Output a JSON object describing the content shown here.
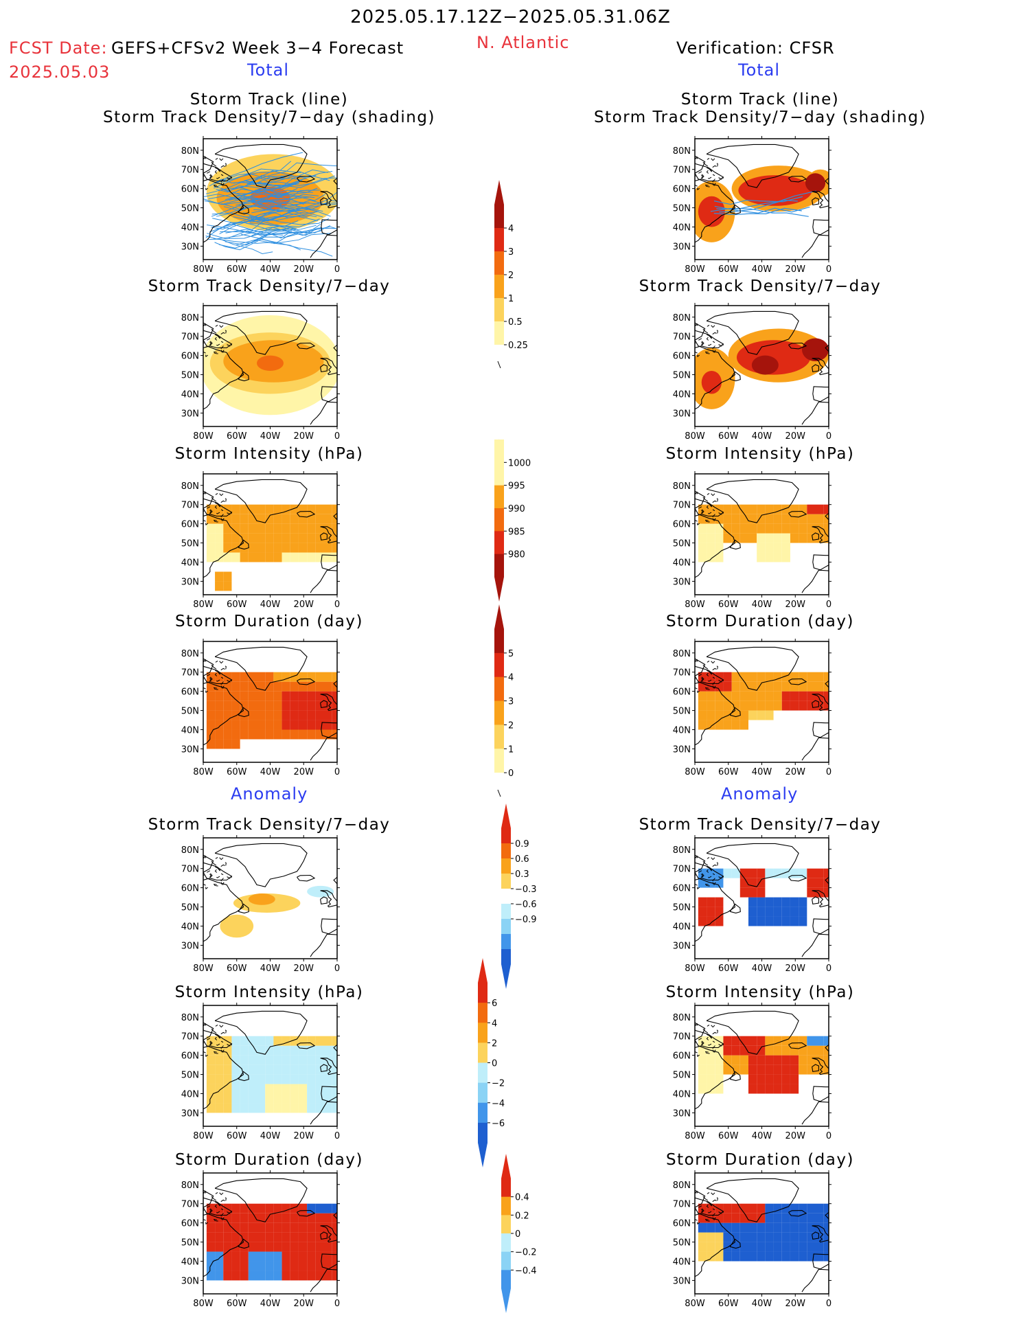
{
  "header": {
    "period": "2025.05.17.12Z−2025.05.31.06Z",
    "region": "N. Atlantic",
    "fcst_label": "FCST Date:",
    "fcst_product": "GEFS+CFSv2 Week 3−4 Forecast",
    "fcst_date": "2025.05.03",
    "verification": "Verification: CFSR",
    "total_left": "Total",
    "total_right": "Total",
    "anomaly_left": "Anomaly",
    "anomaly_right": "Anomaly"
  },
  "panel_titles": {
    "track_line_1": "Storm Track (line)",
    "track_line_2": "Storm Track Density/7−day (shading)",
    "density": "Storm Track Density/7−day",
    "intensity": "Storm Intensity (hPa)",
    "duration": "Storm Duration (day)"
  },
  "axes": {
    "lat_ticks": [
      "80N",
      "70N",
      "60N",
      "50N",
      "40N",
      "30N"
    ],
    "lon_ticks": [
      "80W",
      "60W",
      "40W",
      "20W",
      "0"
    ]
  },
  "colorbars": {
    "density_total": [
      "4",
      "3",
      "2",
      "1",
      "0.5",
      "0.25"
    ],
    "intensity_total": [
      "1000",
      "995",
      "990",
      "985",
      "980"
    ],
    "duration_total": [
      "5",
      "4",
      "3",
      "2",
      "1",
      "0"
    ],
    "density_anom": [
      "0.9",
      "0.6",
      "0.3",
      "−0.3",
      "−0.6",
      "−0.9"
    ],
    "intensity_anom": [
      "6",
      "4",
      "2",
      "0",
      "−2",
      "−4",
      "−6"
    ],
    "duration_anom": [
      "0.4",
      "0.2",
      "0",
      "−0.2",
      "−0.4"
    ]
  },
  "colors": {
    "light_yellow": "#fff5a8",
    "yellow": "#fcd35c",
    "orange": "#f9a21b",
    "dark_orange": "#f26b0f",
    "red": "#df2a14",
    "dark_red": "#a5140c",
    "pale_blue": "#bfeefa",
    "light_blue": "#8bd3f5",
    "blue": "#4195ea",
    "dark_blue": "#1e5fd0",
    "track_blue": "#2e8fe0"
  }
}
